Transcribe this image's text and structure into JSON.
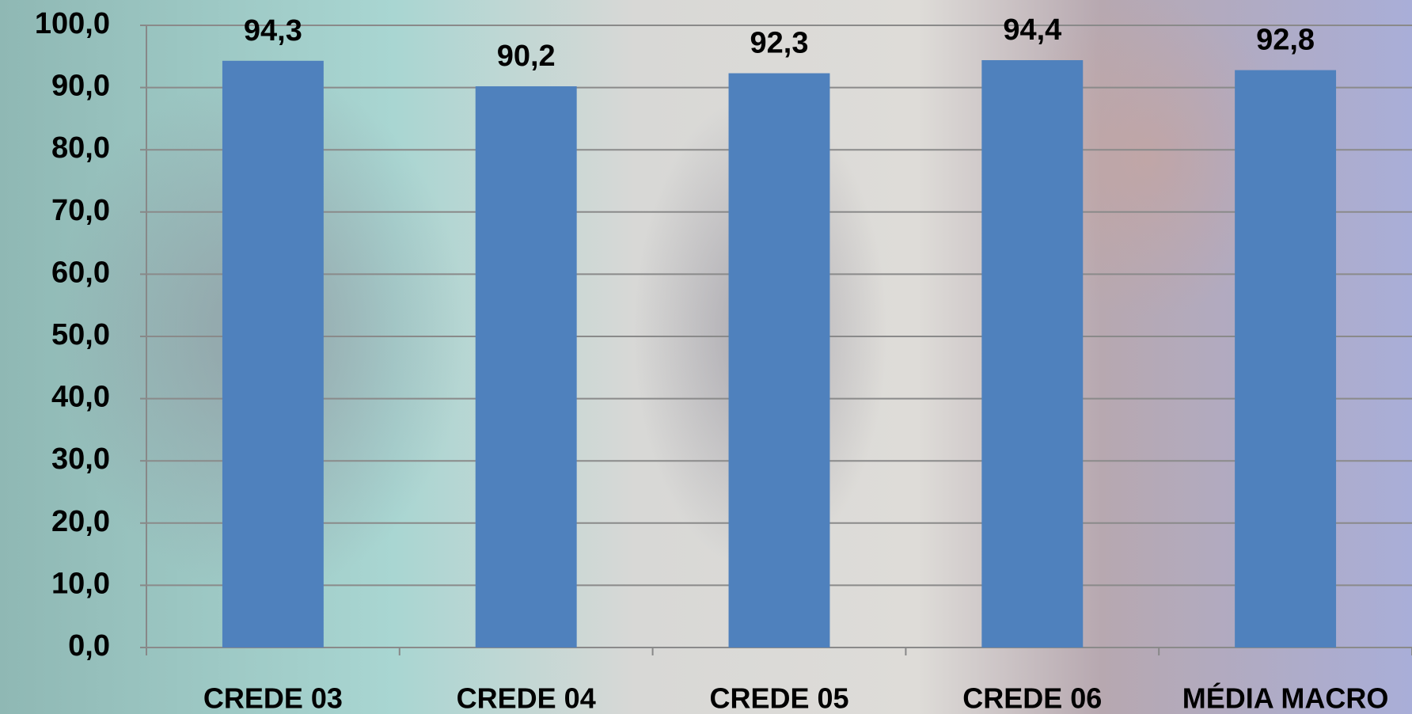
{
  "chart_data": {
    "type": "bar",
    "categories": [
      "CREDE 03",
      "CREDE 04",
      "CREDE 05",
      "CREDE 06",
      "MÉDIA MACRO"
    ],
    "values": [
      94.3,
      90.2,
      92.3,
      94.4,
      92.8
    ],
    "value_labels": [
      "94,3",
      "90,2",
      "92,3",
      "94,4",
      "92,8"
    ],
    "color": "#4f81bd",
    "ylim": [
      0,
      100
    ],
    "yticks": [
      {
        "value": 0,
        "label": "0,0"
      },
      {
        "value": 10,
        "label": "10,0"
      },
      {
        "value": 20,
        "label": "20,0"
      },
      {
        "value": 30,
        "label": "30,0"
      },
      {
        "value": 40,
        "label": "40,0"
      },
      {
        "value": 50,
        "label": "50,0"
      },
      {
        "value": 60,
        "label": "60,0"
      },
      {
        "value": 70,
        "label": "70,0"
      },
      {
        "value": 80,
        "label": "80,0"
      },
      {
        "value": 90,
        "label": "90,0"
      },
      {
        "value": 100,
        "label": "100,0"
      }
    ],
    "grid": true
  }
}
